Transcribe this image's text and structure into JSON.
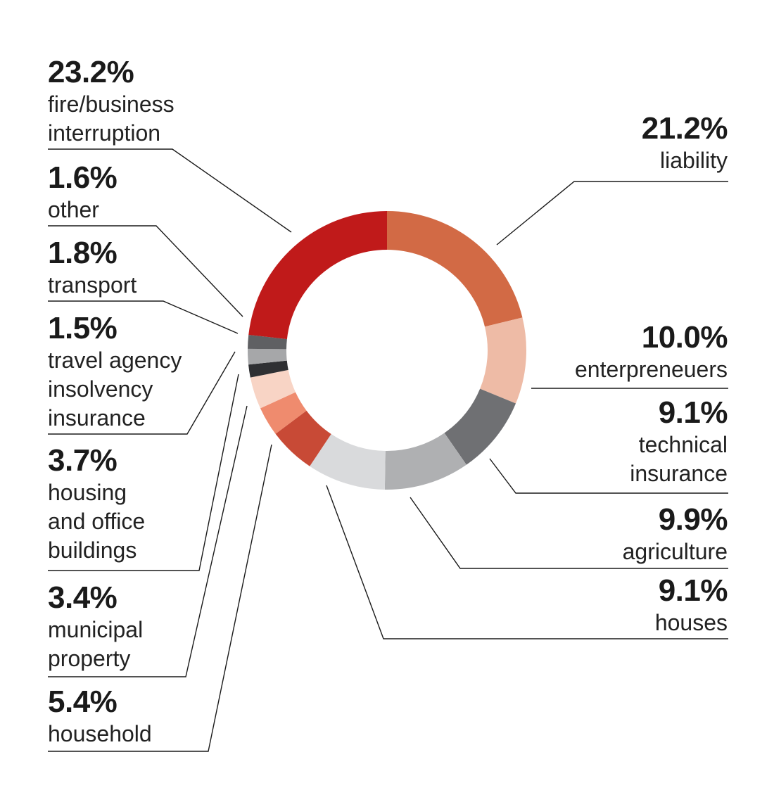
{
  "chart_data": {
    "type": "pie",
    "subtype": "donut",
    "slices": [
      {
        "label": "liability",
        "value": 21.2,
        "display": "21.2%",
        "color": "#d26a45"
      },
      {
        "label": "enterpreneuers",
        "value": 10.0,
        "display": "10.0%",
        "color": "#eebba6"
      },
      {
        "label": "technical\ninsurance",
        "value": 9.1,
        "display": "9.1%",
        "color": "#6f7073"
      },
      {
        "label": "agriculture",
        "value": 9.9,
        "display": "9.9%",
        "color": "#afb0b2"
      },
      {
        "label": "houses",
        "value": 9.1,
        "display": "9.1%",
        "color": "#d9dadc"
      },
      {
        "label": "household",
        "value": 5.4,
        "display": "5.4%",
        "color": "#c84a36"
      },
      {
        "label": "municipal\nproperty",
        "value": 3.4,
        "display": "3.4%",
        "color": "#ef8b6e"
      },
      {
        "label": "housing\nand office\nbuildings",
        "value": 3.7,
        "display": "3.7%",
        "color": "#f8d4c5"
      },
      {
        "label": "travel agency\ninsolvency\ninsurance",
        "value": 1.5,
        "display": "1.5%",
        "color": "#2f3033"
      },
      {
        "label": "transport",
        "value": 1.8,
        "display": "1.8%",
        "color": "#a6a7a9"
      },
      {
        "label": "other",
        "value": 1.6,
        "display": "1.6%",
        "color": "#5f6063"
      },
      {
        "label": "fire/business\ninterruption",
        "value": 23.2,
        "display": "23.2%",
        "color": "#c01a1a"
      }
    ],
    "start": "top, clockwise",
    "legend": "leader-line labels"
  }
}
